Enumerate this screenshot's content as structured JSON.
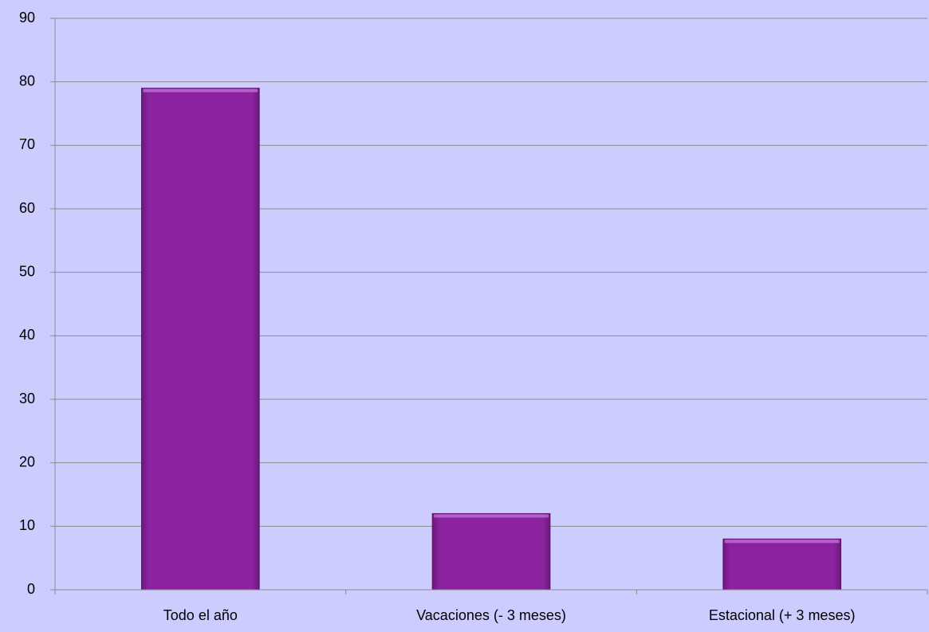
{
  "chart_data": {
    "type": "bar",
    "categories": [
      "Todo el año",
      "Vacaciones (- 3 meses)",
      "Estacional (+ 3 meses)"
    ],
    "values": [
      79,
      12,
      8
    ],
    "color": "#8b22a0",
    "ylim": [
      0,
      90
    ],
    "yticks": [
      0,
      10,
      20,
      30,
      40,
      50,
      60,
      70,
      80,
      90
    ],
    "grid": true
  }
}
